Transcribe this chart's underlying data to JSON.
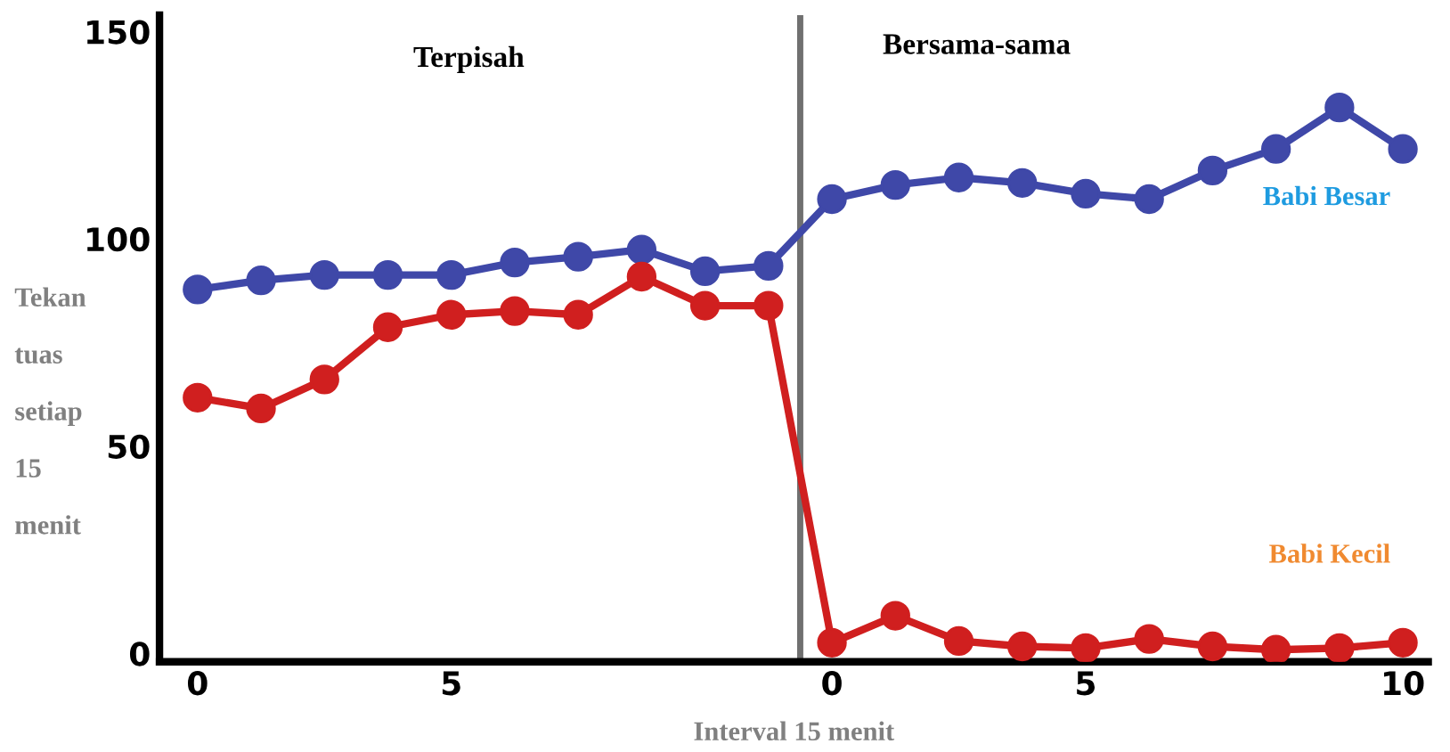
{
  "chart_data": {
    "type": "line",
    "xlabel": "Interval 15 menit",
    "ylabel": "Tekan tuas setiap 15 menit",
    "annotations": [
      "Terpisah",
      "Bersama-sama"
    ],
    "categories": [
      "0",
      null,
      null,
      null,
      "5",
      null,
      null,
      null,
      null,
      null,
      "0",
      null,
      null,
      null,
      "5",
      null,
      null,
      null,
      null,
      "10"
    ],
    "series": [
      {
        "name": "Babi Besar",
        "color": "#3f48a8",
        "values": [
          87.8,
          90,
          91.3,
          91.3,
          91.3,
          94.3,
          95.7,
          97.4,
          92.2,
          93.5,
          109.6,
          113,
          114.8,
          113.5,
          110.9,
          109.6,
          116.5,
          121.7,
          131.7,
          121.7
        ]
      },
      {
        "name": "Babi Kecil",
        "color": "#d01f1f",
        "values": [
          61.7,
          59.1,
          66.1,
          78.7,
          81.7,
          82.6,
          81.7,
          90.9,
          83.9,
          83.9,
          2.6,
          9.1,
          3,
          1.7,
          1.3,
          3.5,
          1.7,
          0.9,
          1.3,
          2.6
        ]
      }
    ],
    "ylim": [
      -2,
      154
    ],
    "yticks": [
      0,
      50,
      100,
      150
    ],
    "marker": "circle",
    "line_style": "solid",
    "grid": false,
    "legend": false
  }
}
